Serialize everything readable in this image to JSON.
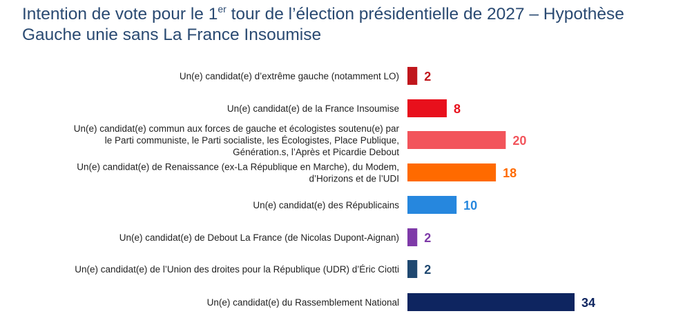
{
  "header": {
    "title_part1": "Intention de vote pour le 1",
    "title_sup": "er",
    "title_part2": " tour de l’élection présidentielle de 2027 – Hypothèse Gauche unie sans La France Insoumise"
  },
  "chart_data": {
    "type": "bar",
    "orientation": "horizontal",
    "title": "Intention de vote pour le 1er tour de l’élection présidentielle de 2027 – Hypothèse Gauche unie sans La France Insoumise",
    "xlabel": "",
    "ylabel": "",
    "xlim": [
      0,
      34
    ],
    "grid": false,
    "legend": "none",
    "categories": [
      [
        "Un(e) candidat(e) d’extrême gauche (notamment LO)"
      ],
      [
        "Un(e) candidat(e) de la France Insoumise"
      ],
      [
        "Un(e) candidat(e) commun aux forces de gauche et écologistes soutenu(e) par",
        "le Parti communiste, le Parti socialiste, les Écologistes, Place Publique,",
        "Génération.s, l’Après et Picardie Debout"
      ],
      [
        "Un(e) candidat(e) de Renaissance (ex-La République en Marche), du Modem,",
        "d’Horizons et de l’UDI"
      ],
      [
        "Un(e) candidat(e) des Républicains"
      ],
      [
        "Un(e) candidat(e) de Debout La France (de Nicolas Dupont-Aignan)"
      ],
      [
        "Un(e) candidat(e) de l’Union des droites pour la République (UDR) d’Éric Ciotti"
      ],
      [
        "Un(e) candidat(e) du Rassemblement National"
      ]
    ],
    "values": [
      2,
      8,
      20,
      18,
      10,
      2,
      2,
      34
    ],
    "colors": [
      "#c0161c",
      "#e8101c",
      "#f2545b",
      "#ff6a00",
      "#2687de",
      "#7e3aa8",
      "#1f4870",
      "#0e2560"
    ]
  }
}
